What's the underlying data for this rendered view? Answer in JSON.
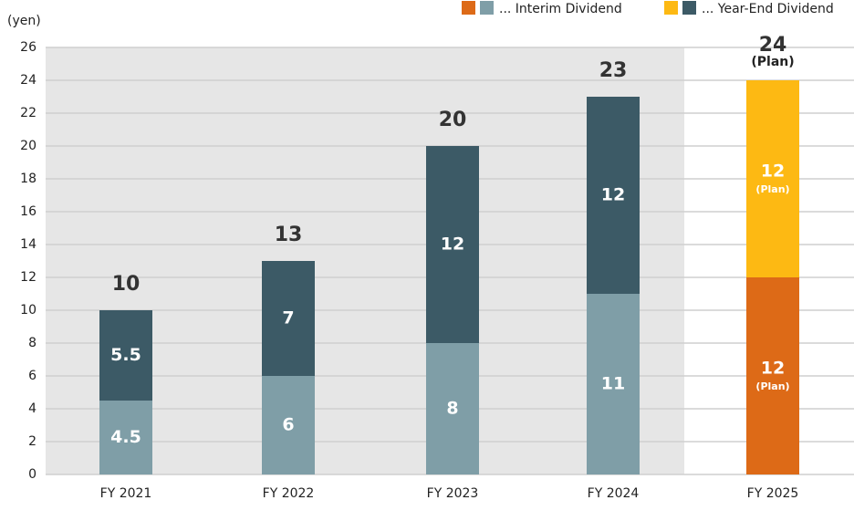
{
  "chart_data": {
    "type": "stacked-bar",
    "y_unit": "(yen)",
    "categories": [
      "FY 2021",
      "FY 2022",
      "FY 2023",
      "FY 2024",
      "FY 2025"
    ],
    "series": [
      {
        "name": "... Interim Dividend",
        "color": "#7f9ea7",
        "plan_color": "#dd6a17",
        "values": [
          4.5,
          6,
          8,
          11,
          12
        ]
      },
      {
        "name": "... Year-End Dividend",
        "color": "#3c5a66",
        "plan_color": "#fdb913",
        "values": [
          5.5,
          7,
          12,
          12,
          12
        ]
      }
    ],
    "totals": [
      10,
      13,
      20,
      23,
      24
    ],
    "plan": [
      false,
      false,
      false,
      false,
      true
    ],
    "plan_label": "(Plan)",
    "ylim": [
      0,
      26
    ],
    "yticks": [
      0,
      2,
      4,
      6,
      8,
      10,
      12,
      14,
      16,
      18,
      20,
      22,
      24,
      26
    ],
    "grid": true
  }
}
